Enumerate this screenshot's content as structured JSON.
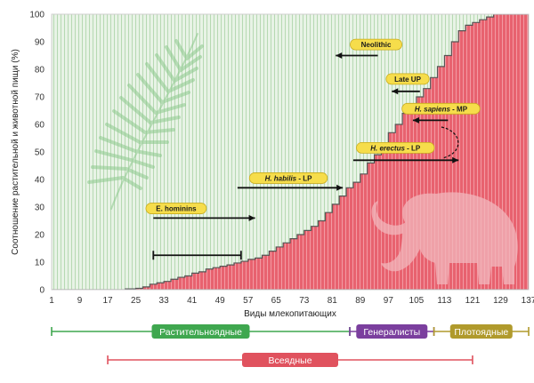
{
  "chart_data": {
    "type": "area",
    "title": "",
    "xlabel": "Виды млекопитающих",
    "ylabel": "Соотношение растительной и животной пищи (%)",
    "xlim": [
      1,
      137
    ],
    "ylim": [
      0,
      100
    ],
    "x_ticks": [
      1,
      9,
      17,
      25,
      33,
      41,
      49,
      57,
      65,
      73,
      81,
      89,
      97,
      105,
      113,
      121,
      129,
      137
    ],
    "y_ticks": [
      0,
      10,
      20,
      30,
      40,
      50,
      60,
      70,
      80,
      90,
      100
    ],
    "grid": "vertical",
    "colors": {
      "plant_area": "#e6f2e4",
      "plant_grid": "#b9dcb5",
      "animal_area": "#e86471",
      "animal_grid": "#f5a3ab",
      "frame": "#c8c8c8"
    },
    "step_points": [
      [
        1,
        0
      ],
      [
        17,
        0
      ],
      [
        22,
        0.3
      ],
      [
        25,
        0.5
      ],
      [
        27,
        1
      ],
      [
        29,
        2
      ],
      [
        31,
        2.5
      ],
      [
        33,
        3
      ],
      [
        35,
        3.8
      ],
      [
        37,
        4.5
      ],
      [
        39,
        5
      ],
      [
        41,
        6
      ],
      [
        43,
        6.5
      ],
      [
        45,
        7.5
      ],
      [
        47,
        8
      ],
      [
        49,
        8.5
      ],
      [
        51,
        9
      ],
      [
        53,
        9.7
      ],
      [
        55,
        10.3
      ],
      [
        57,
        11
      ],
      [
        59,
        11.5
      ],
      [
        61,
        12.5
      ],
      [
        63,
        14
      ],
      [
        65,
        15.5
      ],
      [
        67,
        17
      ],
      [
        69,
        18.5
      ],
      [
        71,
        20
      ],
      [
        73,
        21.5
      ],
      [
        75,
        23
      ],
      [
        77,
        25
      ],
      [
        79,
        28
      ],
      [
        81,
        31
      ],
      [
        83,
        34
      ],
      [
        85,
        37
      ],
      [
        87,
        39
      ],
      [
        89,
        42
      ],
      [
        91,
        46
      ],
      [
        93,
        49
      ],
      [
        95,
        53
      ],
      [
        97,
        57
      ],
      [
        99,
        60
      ],
      [
        101,
        64
      ],
      [
        103,
        67
      ],
      [
        105,
        70
      ],
      [
        107,
        73
      ],
      [
        109,
        77
      ],
      [
        111,
        81
      ],
      [
        113,
        85
      ],
      [
        115,
        90
      ],
      [
        117,
        94
      ],
      [
        119,
        96
      ],
      [
        121,
        97
      ],
      [
        123,
        98
      ],
      [
        125,
        99
      ],
      [
        127,
        100
      ],
      [
        137,
        100
      ]
    ],
    "annotations": [
      {
        "label": "E. hominins",
        "italic": false,
        "x": 36.5,
        "y": 29.5,
        "arrow": [
          [
            30,
            26
          ],
          [
            59,
            26
          ]
        ]
      },
      {
        "label": "H. habilis - LP",
        "italic_part": "H. habilis",
        "plain_part": " - LP",
        "x": 68.5,
        "y": 40.5,
        "arrow": [
          [
            54,
            37
          ],
          [
            84,
            37
          ]
        ]
      },
      {
        "label": "H. erectus - LP",
        "italic_part": "H. erectus",
        "plain_part": " - LP",
        "x": 99,
        "y": 51.5,
        "arrow": [
          [
            87,
            47
          ],
          [
            117,
            47
          ]
        ]
      },
      {
        "label": "H. sapiens - MP",
        "italic_part": "H. sapiens",
        "plain_part": " - MP",
        "x": 112,
        "y": 65.7,
        "arrow": [
          [
            114,
            61.5
          ],
          [
            104,
            61.5
          ]
        ]
      },
      {
        "label": "Late UP",
        "italic": false,
        "x": 102.5,
        "y": 76.5,
        "arrow": [
          [
            106,
            72
          ],
          [
            98,
            72
          ]
        ]
      },
      {
        "label": "Neolithic",
        "italic": false,
        "x": 93.5,
        "y": 89,
        "arrow": [
          [
            94,
            85
          ],
          [
            82,
            85
          ]
        ]
      }
    ],
    "range_bar": {
      "x": [
        30,
        55
      ],
      "y": 12.5
    },
    "categories": [
      {
        "label": "Растительноядные",
        "range": [
          1,
          86
        ],
        "color": "#3fa74f"
      },
      {
        "label": "Генералисты",
        "range": [
          86,
          110
        ],
        "color": "#7b3f9e"
      },
      {
        "label": "Плотоядные",
        "range": [
          110,
          137
        ],
        "color": "#b09a2c"
      },
      {
        "label": "Всеядные",
        "range": [
          17,
          121
        ],
        "color": "#e0525e"
      }
    ]
  }
}
